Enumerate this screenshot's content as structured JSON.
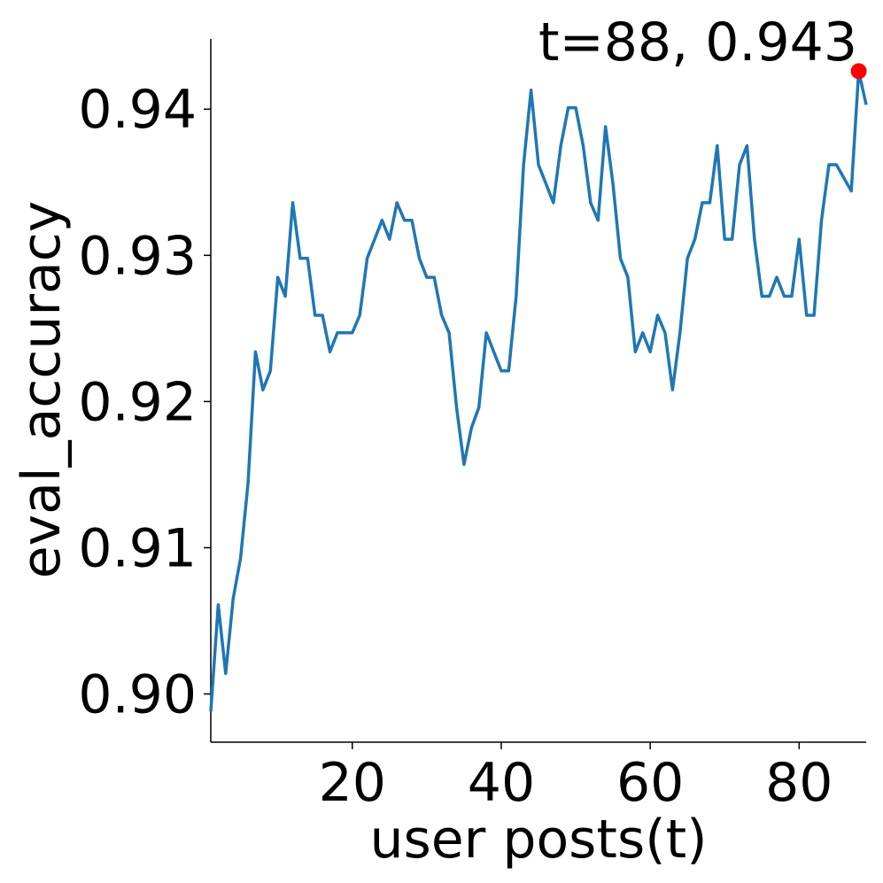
{
  "chart_data": {
    "type": "line",
    "x": [
      1,
      2,
      3,
      4,
      5,
      6,
      7,
      8,
      9,
      10,
      11,
      12,
      13,
      14,
      15,
      16,
      17,
      18,
      19,
      20,
      21,
      22,
      23,
      24,
      25,
      26,
      27,
      28,
      29,
      30,
      31,
      32,
      33,
      34,
      35,
      36,
      37,
      38,
      39,
      40,
      41,
      42,
      43,
      44,
      45,
      46,
      47,
      48,
      49,
      50,
      51,
      52,
      53,
      54,
      55,
      56,
      57,
      58,
      59,
      60,
      61,
      62,
      63,
      64,
      65,
      66,
      67,
      68,
      69,
      70,
      71,
      72,
      73,
      74,
      75,
      76,
      77,
      78,
      79,
      80,
      81,
      82,
      83,
      84,
      85,
      86,
      87,
      88,
      89
    ],
    "series": [
      {
        "name": "eval_accuracy",
        "color": "#1f77b4",
        "values": [
          0.8988,
          0.9061,
          0.9014,
          0.9065,
          0.9093,
          0.9144,
          0.9234,
          0.9208,
          0.9221,
          0.9285,
          0.9272,
          0.9336,
          0.9298,
          0.9298,
          0.9259,
          0.9259,
          0.9234,
          0.9247,
          0.9247,
          0.9247,
          0.9259,
          0.9298,
          0.9311,
          0.9324,
          0.9311,
          0.9336,
          0.9324,
          0.9324,
          0.9298,
          0.9285,
          0.9285,
          0.9259,
          0.9247,
          0.9196,
          0.9157,
          0.9182,
          0.9196,
          0.9247,
          0.9234,
          0.9221,
          0.9221,
          0.9272,
          0.9362,
          0.9413,
          0.9362,
          0.9349,
          0.9336,
          0.9375,
          0.9401,
          0.9401,
          0.9375,
          0.9336,
          0.9324,
          0.9388,
          0.9349,
          0.9298,
          0.9285,
          0.9234,
          0.9247,
          0.9234,
          0.9259,
          0.9247,
          0.9208,
          0.9247,
          0.9298,
          0.9311,
          0.9336,
          0.9336,
          0.9375,
          0.9311,
          0.9311,
          0.9362,
          0.9375,
          0.9311,
          0.9272,
          0.9272,
          0.9285,
          0.9272,
          0.9272,
          0.9311,
          0.9259,
          0.9259,
          0.9324,
          0.9362,
          0.9362,
          0.9353,
          0.9344,
          0.9426,
          0.9403
        ]
      }
    ],
    "xlabel": "user posts(t)",
    "ylabel": "eval_accuracy",
    "xlim": [
      1,
      89
    ],
    "ylim": [
      0.8967,
      0.9448
    ],
    "xticks": [
      20,
      40,
      60,
      80
    ],
    "yticks": [
      {
        "value": 0.9,
        "label": "0.90"
      },
      0.91,
      0.92,
      0.93,
      0.94
    ],
    "highlight": {
      "x": 88,
      "y": 0.9426,
      "label": "t=88, 0.943",
      "color": "#ff0000"
    }
  }
}
